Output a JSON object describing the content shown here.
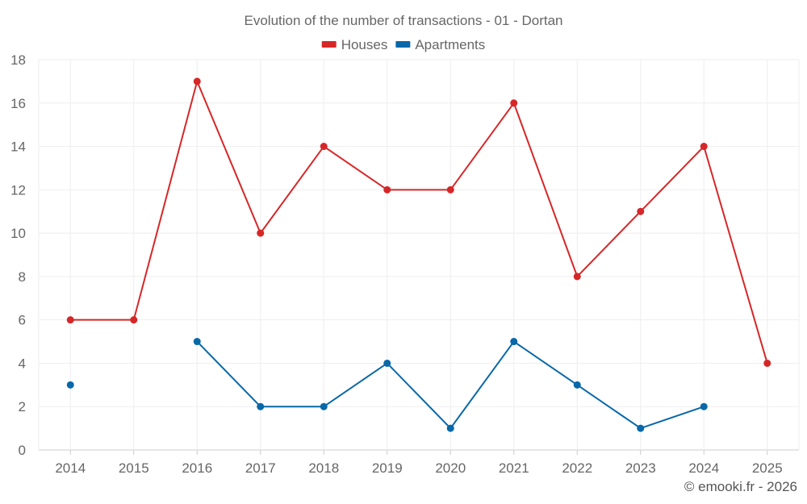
{
  "chart_data": {
    "type": "line",
    "title": "Evolution of the number of transactions - 01 - Dortan",
    "categories": [
      "2014",
      "2015",
      "2016",
      "2017",
      "2018",
      "2019",
      "2020",
      "2021",
      "2022",
      "2023",
      "2024",
      "2025"
    ],
    "ylim": [
      0,
      18
    ],
    "yticks": [
      0,
      2,
      4,
      6,
      8,
      10,
      12,
      14,
      16,
      18
    ],
    "grid": true,
    "legend_position": "top-center",
    "series": [
      {
        "name": "Houses",
        "color": "#d62728",
        "values": [
          6,
          6,
          17,
          10,
          14,
          12,
          12,
          16,
          8,
          11,
          14,
          4
        ]
      },
      {
        "name": "Apartments",
        "color": "#0868a8",
        "values": [
          3,
          null,
          5,
          2,
          2,
          4,
          1,
          5,
          3,
          1,
          2,
          null
        ]
      }
    ]
  },
  "credit": "© emooki.fr - 2026"
}
